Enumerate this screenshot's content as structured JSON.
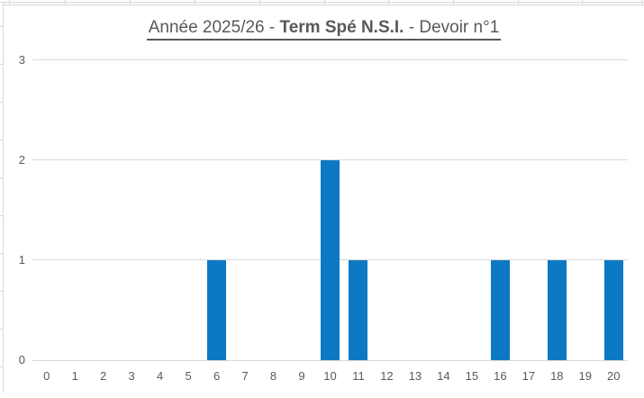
{
  "title": {
    "part_regular_1": "Année 2025/26 - ",
    "part_bold": "Term Spé N.S.I.",
    "part_regular_2": " - Devoir n°1",
    "color": "#595959",
    "underlined": true
  },
  "chart_data": {
    "type": "bar",
    "title": "Année 2025/26 - Term Spé N.S.I. - Devoir n°1",
    "categories": [
      "0",
      "1",
      "2",
      "3",
      "4",
      "5",
      "6",
      "7",
      "8",
      "9",
      "10",
      "11",
      "12",
      "13",
      "14",
      "15",
      "16",
      "17",
      "18",
      "19",
      "20"
    ],
    "values": [
      0,
      0,
      0,
      0,
      0,
      0,
      1,
      0,
      0,
      0,
      2,
      1,
      0,
      0,
      0,
      0,
      1,
      0,
      1,
      0,
      1
    ],
    "xlabel": "",
    "ylabel": "",
    "ylim": [
      0,
      3
    ],
    "yticks": [
      0,
      1,
      2,
      3
    ],
    "grid": true,
    "legend": false,
    "bar_color": "#0d78c4",
    "gridline_color": "#d9d9d9",
    "axis_text_color": "#595959",
    "background_color": "#ffffff"
  }
}
